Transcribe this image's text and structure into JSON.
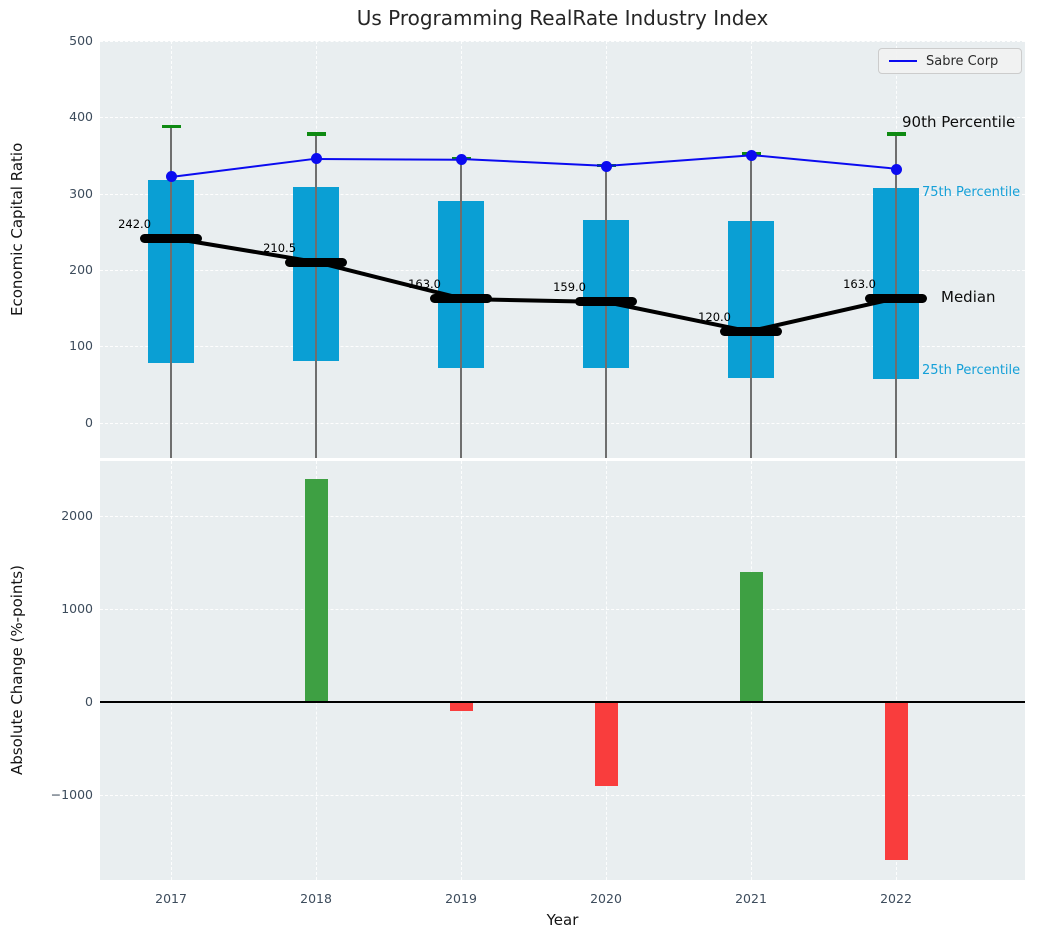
{
  "title": "Us Programming RealRate Industry Index",
  "legend": {
    "label": "Sabre Corp"
  },
  "annotations": {
    "p90": "90th Percentile",
    "p75": "75th Percentile",
    "median": "Median",
    "p25": "25th Percentile"
  },
  "axes": {
    "xlabel": "Year",
    "top_ylabel": "Economic Capital Ratio",
    "bottom_ylabel": "Absolute Change (%-points)",
    "top_yticks": {
      "values": [
        0,
        100,
        200,
        300,
        400,
        500
      ],
      "labels": [
        "0",
        "100",
        "200",
        "300",
        "400",
        "500"
      ]
    },
    "bottom_yticks": {
      "values": [
        -1000,
        0,
        1000,
        2000
      ],
      "labels": [
        "−1000",
        "0",
        "1000",
        "2000"
      ]
    }
  },
  "colors": {
    "panel_bg": "#e9eef0",
    "tick_color": "#3d4c5c",
    "bar_cyan": "#0a9fd4",
    "cap_green": "#0e8a12",
    "median_black": "#000000",
    "line_blue": "#0b0bf0",
    "cyan_label": "#15a0d8",
    "pos_green": "#3ea043",
    "neg_red": "#f93d3d"
  },
  "chart_data": [
    {
      "type": "line",
      "title": "Economic Capital Ratio percentile distribution with Sabre Corp overlay",
      "categories": [
        "2017",
        "2018",
        "2019",
        "2020",
        "2021",
        "2022"
      ],
      "ylabel": "Economic Capital Ratio",
      "ylim": [
        -46,
        500
      ],
      "grid": true,
      "legend_position": "upper right",
      "series": [
        {
          "name": "25th Percentile",
          "values": [
            79,
            81,
            72,
            72,
            59,
            57
          ]
        },
        {
          "name": "75th Percentile",
          "values": [
            318,
            309,
            290,
            266,
            264,
            308
          ]
        },
        {
          "name": "Median",
          "values": [
            242.0,
            210.5,
            163.0,
            159.0,
            120.0,
            163.0
          ]
        },
        {
          "name": "90th Percentile",
          "values": [
            388,
            378,
            346,
            337,
            352,
            378
          ]
        },
        {
          "name": "Sabre Corp",
          "values": [
            322,
            346,
            345,
            336,
            350,
            332
          ]
        }
      ],
      "median_labels": [
        "242.0",
        "210.5",
        "163.0",
        "159.0",
        "120.0",
        "163.0"
      ]
    },
    {
      "type": "bar",
      "title": "Absolute Change (%-points)",
      "categories": [
        "2017",
        "2018",
        "2019",
        "2020",
        "2021",
        "2022"
      ],
      "values": [
        0,
        2400,
        -100,
        -900,
        1400,
        -1700
      ],
      "xlabel": "Year",
      "ylabel": "Absolute Change (%-points)",
      "ylim": [
        -1914,
        2591
      ],
      "grid": true
    }
  ]
}
